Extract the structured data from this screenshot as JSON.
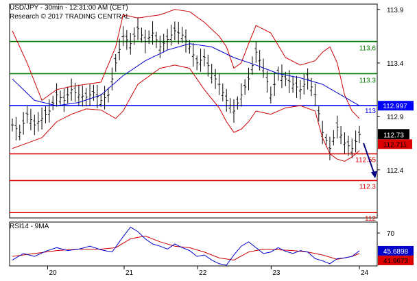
{
  "header": {
    "line1": "USD/JPY - 30min - 12:31:00 AM (CET)",
    "line2": "Research © 2017 TRADING CENTRAL"
  },
  "rsi_panel": {
    "label": "RSI14 - 9MA"
  },
  "colors": {
    "price": "#000000",
    "bollinger": "#cc0000",
    "ma": "#0000cc",
    "resistance": "#008000",
    "pivot": "#0000ff",
    "support": "#dd0000",
    "arrow": "#000080",
    "rsi": "#0000cc",
    "rsi_ma": "#cc0000"
  },
  "chart_data": [
    {
      "type": "candlestick",
      "title": "USD/JPY - 30min",
      "ylim": [
        111.95,
        113.95
      ],
      "y_ticks": [
        "113.9",
        "113.4",
        "112.9",
        "112.4"
      ],
      "x_ticks": [
        "20",
        "21",
        "22",
        "23",
        "24"
      ],
      "current_price": "112.73",
      "current_price_2": "112.711",
      "levels": [
        {
          "value": 113.6,
          "label": "113.6",
          "kind": "resistance"
        },
        {
          "value": 113.3,
          "label": "113.3",
          "kind": "resistance"
        },
        {
          "value": 113.0,
          "label": "113",
          "kind": "pivot",
          "tag": "112.997"
        },
        {
          "value": 112.55,
          "label": "112.55",
          "kind": "support"
        },
        {
          "value": 112.3,
          "label": "112.3",
          "kind": "support"
        },
        {
          "value": 112.0,
          "label": "112",
          "kind": "support"
        }
      ],
      "arrow": {
        "from": 112.65,
        "to": 112.32
      },
      "close_path": [
        [
          0,
          112.82
        ],
        [
          2,
          112.75
        ],
        [
          4,
          112.92
        ],
        [
          6,
          112.82
        ],
        [
          8,
          112.88
        ],
        [
          10,
          112.95
        ],
        [
          12,
          113.1
        ],
        [
          14,
          113.05
        ],
        [
          16,
          113.15
        ],
        [
          18,
          113.1
        ],
        [
          20,
          113.08
        ],
        [
          22,
          113.12
        ],
        [
          24,
          113.05
        ],
        [
          26,
          113.1
        ],
        [
          28,
          113.4
        ],
        [
          30,
          113.65
        ],
        [
          32,
          113.58
        ],
        [
          34,
          113.72
        ],
        [
          36,
          113.6
        ],
        [
          38,
          113.68
        ],
        [
          40,
          113.55
        ],
        [
          42,
          113.62
        ],
        [
          44,
          113.7
        ],
        [
          46,
          113.66
        ],
        [
          48,
          113.55
        ],
        [
          50,
          113.4
        ],
        [
          52,
          113.45
        ],
        [
          54,
          113.3
        ],
        [
          56,
          113.2
        ],
        [
          58,
          113.05
        ],
        [
          60,
          112.95
        ],
        [
          62,
          113.1
        ],
        [
          64,
          113.25
        ],
        [
          66,
          113.5
        ],
        [
          68,
          113.35
        ],
        [
          70,
          113.1
        ],
        [
          72,
          113.3
        ],
        [
          74,
          113.25
        ],
        [
          76,
          113.2
        ],
        [
          78,
          113.15
        ],
        [
          80,
          113.25
        ],
        [
          82,
          113.1
        ],
        [
          84,
          112.75
        ],
        [
          86,
          112.6
        ],
        [
          88,
          112.8
        ],
        [
          90,
          112.65
        ],
        [
          92,
          112.6
        ],
        [
          94,
          112.73
        ]
      ],
      "ma": [
        [
          0,
          113.25
        ],
        [
          6,
          113.05
        ],
        [
          12,
          113.0
        ],
        [
          18,
          113.03
        ],
        [
          24,
          113.1
        ],
        [
          30,
          113.28
        ],
        [
          36,
          113.42
        ],
        [
          42,
          113.52
        ],
        [
          48,
          113.58
        ],
        [
          54,
          113.55
        ],
        [
          60,
          113.45
        ],
        [
          66,
          113.38
        ],
        [
          72,
          113.3
        ],
        [
          78,
          113.26
        ],
        [
          84,
          113.2
        ],
        [
          90,
          113.08
        ],
        [
          94,
          113.0
        ]
      ],
      "bollinger_upper": [
        [
          0,
          113.7
        ],
        [
          4,
          113.4
        ],
        [
          8,
          113.05
        ],
        [
          12,
          113.15
        ],
        [
          16,
          113.18
        ],
        [
          20,
          113.2
        ],
        [
          24,
          113.22
        ],
        [
          28,
          113.55
        ],
        [
          30,
          113.85
        ],
        [
          34,
          113.82
        ],
        [
          40,
          113.85
        ],
        [
          44,
          113.9
        ],
        [
          48,
          113.88
        ],
        [
          52,
          113.78
        ],
        [
          56,
          113.65
        ],
        [
          58,
          113.55
        ],
        [
          60,
          113.35
        ],
        [
          62,
          113.4
        ],
        [
          64,
          113.58
        ],
        [
          66,
          113.75
        ],
        [
          70,
          113.68
        ],
        [
          74,
          113.45
        ],
        [
          78,
          113.38
        ],
        [
          82,
          113.42
        ],
        [
          84,
          113.5
        ],
        [
          86,
          113.55
        ],
        [
          88,
          113.4
        ],
        [
          90,
          113.1
        ],
        [
          92,
          112.95
        ],
        [
          94,
          112.88
        ]
      ],
      "bollinger_lower": [
        [
          0,
          112.6
        ],
        [
          4,
          112.65
        ],
        [
          8,
          112.7
        ],
        [
          12,
          112.85
        ],
        [
          16,
          112.92
        ],
        [
          20,
          112.97
        ],
        [
          24,
          112.96
        ],
        [
          28,
          112.88
        ],
        [
          30,
          112.95
        ],
        [
          34,
          113.2
        ],
        [
          40,
          113.35
        ],
        [
          44,
          113.38
        ],
        [
          48,
          113.35
        ],
        [
          52,
          113.15
        ],
        [
          56,
          112.98
        ],
        [
          58,
          112.85
        ],
        [
          60,
          112.75
        ],
        [
          62,
          112.78
        ],
        [
          64,
          112.85
        ],
        [
          66,
          112.95
        ],
        [
          70,
          112.92
        ],
        [
          74,
          112.98
        ],
        [
          78,
          113.0
        ],
        [
          82,
          112.95
        ],
        [
          84,
          112.7
        ],
        [
          86,
          112.55
        ],
        [
          88,
          112.5
        ],
        [
          90,
          112.48
        ],
        [
          92,
          112.52
        ],
        [
          94,
          112.58
        ]
      ]
    },
    {
      "type": "line",
      "title": "RSI14 - 9MA",
      "ylim": [
        25,
        85
      ],
      "y_ticks": [
        "70"
      ],
      "value_labels": [
        "45.6898",
        "41.9673"
      ],
      "series": [
        {
          "name": "RSI14",
          "points": [
            [
              0,
              33
            ],
            [
              3,
              42
            ],
            [
              6,
              38
            ],
            [
              9,
              45
            ],
            [
              12,
              50
            ],
            [
              15,
              46
            ],
            [
              18,
              48
            ],
            [
              21,
              52
            ],
            [
              24,
              47
            ],
            [
              27,
              44
            ],
            [
              30,
              65
            ],
            [
              32,
              78
            ],
            [
              34,
              72
            ],
            [
              36,
              62
            ],
            [
              38,
              55
            ],
            [
              40,
              52
            ],
            [
              42,
              48
            ],
            [
              44,
              55
            ],
            [
              46,
              50
            ],
            [
              48,
              46
            ],
            [
              50,
              38
            ],
            [
              52,
              40
            ],
            [
              54,
              33
            ],
            [
              56,
              28
            ],
            [
              58,
              26
            ],
            [
              60,
              40
            ],
            [
              62,
              52
            ],
            [
              64,
              58
            ],
            [
              66,
              50
            ],
            [
              68,
              42
            ],
            [
              70,
              44
            ],
            [
              72,
              50
            ],
            [
              74,
              45
            ],
            [
              76,
              42
            ],
            [
              78,
              46
            ],
            [
              80,
              44
            ],
            [
              82,
              35
            ],
            [
              84,
              32
            ],
            [
              86,
              28
            ],
            [
              88,
              35
            ],
            [
              90,
              36
            ],
            [
              92,
              38
            ],
            [
              94,
              45.69
            ]
          ]
        },
        {
          "name": "9MA",
          "points": [
            [
              0,
              38
            ],
            [
              6,
              42
            ],
            [
              12,
              46
            ],
            [
              18,
              48
            ],
            [
              24,
              48
            ],
            [
              28,
              50
            ],
            [
              32,
              62
            ],
            [
              36,
              66
            ],
            [
              40,
              58
            ],
            [
              44,
              52
            ],
            [
              48,
              50
            ],
            [
              52,
              44
            ],
            [
              56,
              36
            ],
            [
              60,
              33
            ],
            [
              64,
              44
            ],
            [
              68,
              48
            ],
            [
              72,
              47
            ],
            [
              76,
              46
            ],
            [
              80,
              44
            ],
            [
              84,
              40
            ],
            [
              88,
              34
            ],
            [
              92,
              38
            ],
            [
              94,
              41.97
            ]
          ]
        }
      ]
    }
  ]
}
